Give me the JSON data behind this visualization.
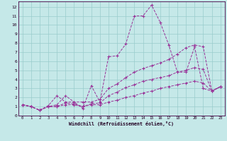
{
  "xlabel": "Windchill (Refroidissement éolien,°C)",
  "bg_color": "#c5e8e8",
  "line_color": "#993399",
  "grid_color": "#99cccc",
  "xlim": [
    -0.5,
    23.5
  ],
  "ylim": [
    0,
    12.6
  ],
  "xticks": [
    0,
    1,
    2,
    3,
    4,
    5,
    6,
    7,
    8,
    9,
    10,
    11,
    12,
    13,
    14,
    15,
    16,
    17,
    18,
    19,
    20,
    21,
    22,
    23
  ],
  "yticks": [
    0,
    1,
    2,
    3,
    4,
    5,
    6,
    7,
    8,
    9,
    10,
    11,
    12
  ],
  "series": [
    {
      "x": [
        0,
        1,
        2,
        3,
        4,
        5,
        6,
        7,
        8,
        9,
        10,
        11,
        12,
        13,
        14,
        15,
        16,
        17,
        18,
        19,
        20,
        21,
        22,
        23
      ],
      "y": [
        1.2,
        1.0,
        0.6,
        1.1,
        2.2,
        1.5,
        1.5,
        0.8,
        3.3,
        1.5,
        6.5,
        6.6,
        7.9,
        11.0,
        11.0,
        12.2,
        10.3,
        7.8,
        4.8,
        4.8,
        7.6,
        3.0,
        2.7,
        3.2
      ]
    },
    {
      "x": [
        0,
        1,
        2,
        3,
        4,
        5,
        6,
        7,
        8,
        9,
        10,
        11,
        12,
        13,
        14,
        15,
        16,
        17,
        18,
        19,
        20,
        21,
        22,
        23
      ],
      "y": [
        1.2,
        1.0,
        0.6,
        1.0,
        1.2,
        2.2,
        1.5,
        1.5,
        1.5,
        1.8,
        3.0,
        3.5,
        4.2,
        4.8,
        5.2,
        5.5,
        5.8,
        6.2,
        6.8,
        7.5,
        7.8,
        7.6,
        2.7,
        3.2
      ]
    },
    {
      "x": [
        0,
        1,
        2,
        3,
        4,
        5,
        6,
        7,
        8,
        9,
        10,
        11,
        12,
        13,
        14,
        15,
        16,
        17,
        18,
        19,
        20,
        21,
        22,
        23
      ],
      "y": [
        1.2,
        1.0,
        0.6,
        1.0,
        1.0,
        1.4,
        1.3,
        1.0,
        1.3,
        1.4,
        2.2,
        2.6,
        3.1,
        3.4,
        3.8,
        4.0,
        4.2,
        4.4,
        4.8,
        5.0,
        5.3,
        5.1,
        2.7,
        3.2
      ]
    },
    {
      "x": [
        0,
        1,
        2,
        3,
        4,
        5,
        6,
        7,
        8,
        9,
        10,
        11,
        12,
        13,
        14,
        15,
        16,
        17,
        18,
        19,
        20,
        21,
        22,
        23
      ],
      "y": [
        1.2,
        1.0,
        0.6,
        1.0,
        1.0,
        1.2,
        1.2,
        1.0,
        1.2,
        1.2,
        1.5,
        1.7,
        2.0,
        2.2,
        2.5,
        2.7,
        3.0,
        3.2,
        3.4,
        3.6,
        3.8,
        3.6,
        2.7,
        3.2
      ]
    }
  ]
}
